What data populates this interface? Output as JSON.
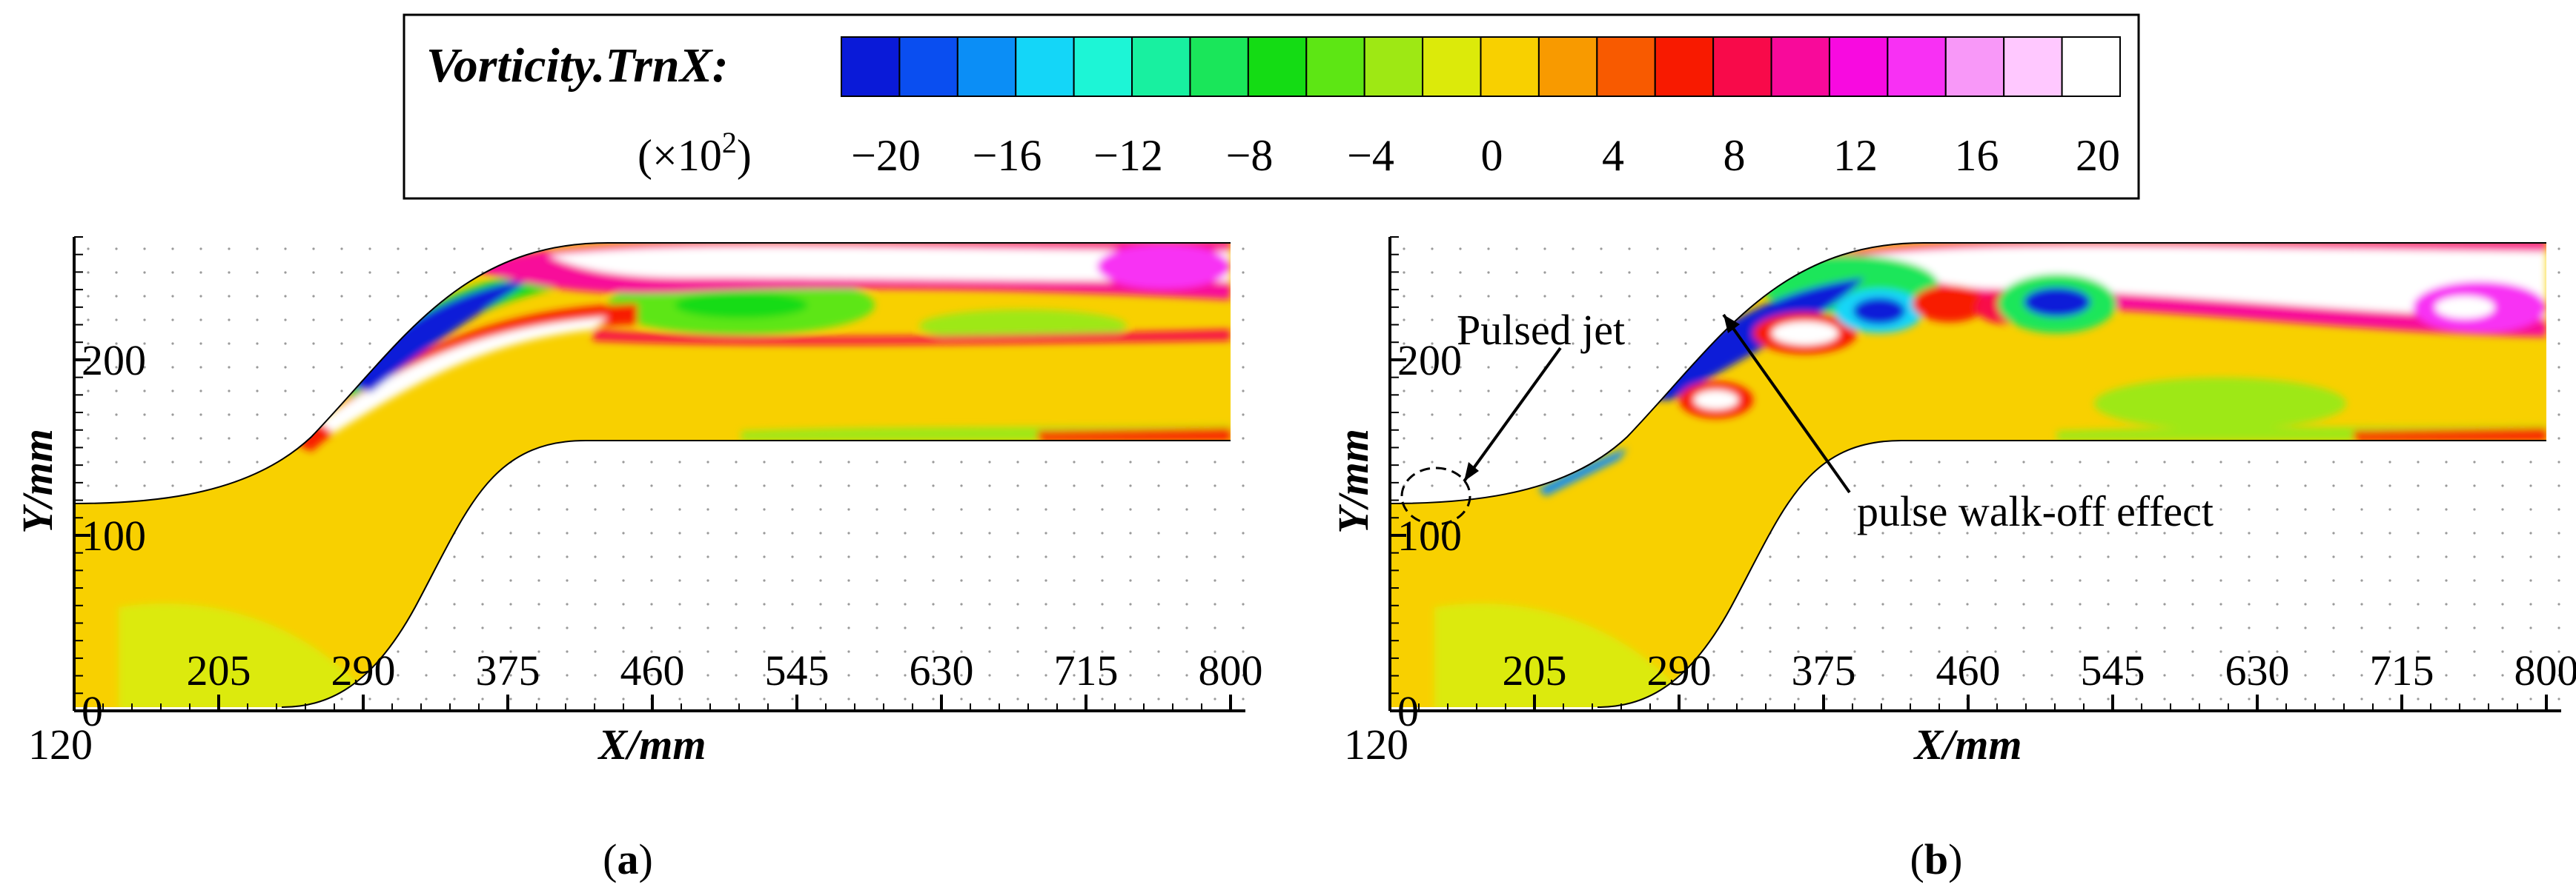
{
  "legend": {
    "title": "Vorticity.TrnX:",
    "unit_prefix": "(×10",
    "unit_exponent": "2",
    "unit_suffix": ")",
    "levels": [
      -20,
      -18,
      -16,
      -14,
      -12,
      -10,
      -8,
      -6,
      -4,
      -2,
      0,
      2,
      4,
      6,
      8,
      10,
      12,
      14,
      16,
      18,
      20
    ],
    "labels": [
      "−20",
      "−16",
      "−12",
      "−8",
      "−4",
      "0",
      "4",
      "8",
      "12",
      "16",
      "20"
    ],
    "label_values": [
      -20,
      -16,
      -12,
      -8,
      -4,
      0,
      4,
      8,
      12,
      16,
      20
    ],
    "colors": [
      "#0a1ad8",
      "#0a4ef0",
      "#0b8ef6",
      "#14d6f8",
      "#1df5d6",
      "#18f0a0",
      "#1ae65a",
      "#14dc14",
      "#5de614",
      "#9ee814",
      "#dcea0a",
      "#f8d000",
      "#f89a00",
      "#f85a00",
      "#f81a00",
      "#f80a4a",
      "#f80a9a",
      "#f80ae0",
      "#f830f4",
      "#f898f8",
      "#ffc8ff",
      "#ffffff"
    ]
  },
  "axes": {
    "xlabel": "X/mm",
    "ylabel": "Y/mm",
    "x_origin_label": "120",
    "x_ticks": [
      "205",
      "290",
      "375",
      "460",
      "545",
      "630",
      "715",
      "800"
    ],
    "x_tick_values": [
      205,
      290,
      375,
      460,
      545,
      630,
      715,
      800
    ],
    "xlim": [
      120,
      800
    ],
    "y_ticks": [
      "0",
      "100",
      "200"
    ],
    "y_tick_values": [
      0,
      100,
      200
    ],
    "ylim": [
      0,
      270
    ]
  },
  "panels": [
    {
      "caption_label": "a"
    },
    {
      "caption_label": "b",
      "annotations": [
        "Pulsed jet",
        "pulse walk-off effect"
      ]
    }
  ],
  "chart_data": [
    {
      "type": "contour",
      "title": "Vorticity.TrnX: (×10²)",
      "xlabel": "X/mm",
      "ylabel": "Y/mm",
      "xlim": [
        120,
        800
      ],
      "ylim": [
        0,
        270
      ],
      "legend_levels": [
        -20,
        -16,
        -12,
        -8,
        -4,
        0,
        4,
        8,
        12,
        16,
        20
      ],
      "panel": "a"
    },
    {
      "type": "contour",
      "title": "Vorticity.TrnX: (×10²)",
      "xlabel": "X/mm",
      "ylabel": "Y/mm",
      "xlim": [
        120,
        800
      ],
      "ylim": [
        0,
        270
      ],
      "legend_levels": [
        -20,
        -16,
        -12,
        -8,
        -4,
        0,
        4,
        8,
        12,
        16,
        20
      ],
      "annotations": [
        "Pulsed jet",
        "pulse walk-off effect"
      ],
      "panel": "b"
    }
  ]
}
